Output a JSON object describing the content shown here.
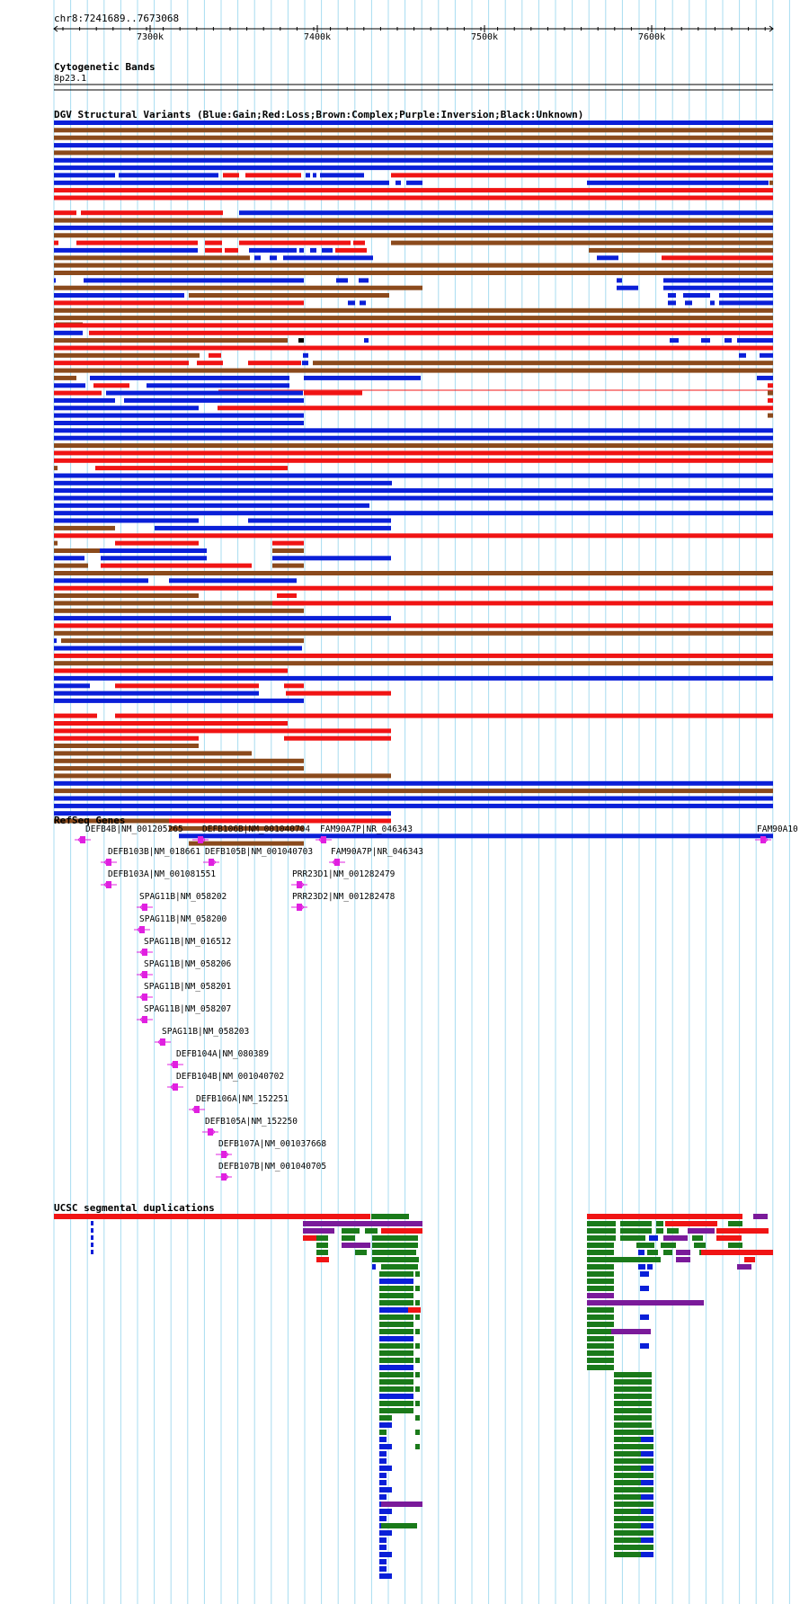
{
  "locus": "chr8:7241689..7673068",
  "ruler_ticks": [
    "7300k",
    "7400k",
    "7500k",
    "7600k"
  ],
  "tracks": {
    "cytoband": {
      "title": "Cytogenetic Bands",
      "band": "8p23.1"
    },
    "dgv": {
      "title": "DGV Structural Variants (Blue:Gain;Red:Loss;Brown:Complex;Purple:Inversion;Black:Unknown)"
    },
    "refseq": {
      "title": "RefSeq Genes"
    },
    "segdup": {
      "title": "UCSC segmental duplications"
    }
  },
  "genes": [
    "DEFB4B|NM_001205265",
    "DEFB106B|NM_001040704",
    "FAM90A7P|NR_046343",
    "FAM90A10",
    "DEFB103B|NM_018661",
    "DEFB105B|NM_001040703",
    "FAM90A7P|NR_046343",
    "DEFB103A|NM_001081551",
    "PRR23D1|NM_001282479",
    "SPAG11B|NM_058202",
    "PRR23D2|NM_001282478",
    "SPAG11B|NM_058200",
    "SPAG11B|NM_016512",
    "SPAG11B|NM_058206",
    "SPAG11B|NM_058201",
    "SPAG11B|NM_058207",
    "SPAG11B|NM_058203",
    "DEFB104A|NM_080389",
    "DEFB104B|NM_001040702",
    "DEFB106A|NM_152251",
    "DEFB105A|NM_152250",
    "DEFB107A|NM_001037668",
    "DEFB107B|NM_001040705"
  ],
  "colors": {
    "gain": "#0a1fd8",
    "loss": "#f01414",
    "complex": "#8b4a1c",
    "inversion": "#7a1a9a",
    "unknown": "#000000",
    "gene": "#e020e0",
    "segdup_green": "#1a7a1a",
    "grid": "#a8dcf0"
  }
}
